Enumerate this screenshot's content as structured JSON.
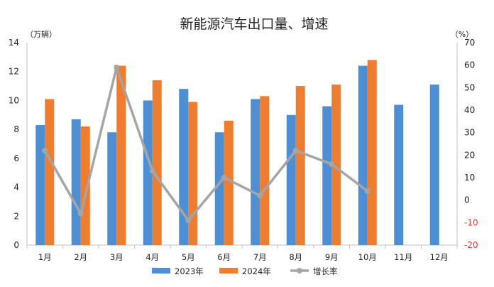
{
  "chart_data": {
    "type": "bar",
    "title": "新能源汽车出口量、增速",
    "left_axis": {
      "unit_label": "（万辆）",
      "range": [
        0,
        14
      ],
      "ticks": [
        "0",
        "2",
        "4",
        "6",
        "8",
        "10",
        "12",
        "14"
      ]
    },
    "right_axis": {
      "unit_label": "（%）",
      "range": [
        -20,
        70
      ],
      "ticks": [
        "-20",
        "-10",
        "0",
        "10",
        "20",
        "30",
        "40",
        "50",
        "60",
        "70"
      ]
    },
    "categories": [
      "1月",
      "2月",
      "3月",
      "4月",
      "5月",
      "6月",
      "7月",
      "8月",
      "9月",
      "10月",
      "11月",
      "12月"
    ],
    "series": [
      {
        "name": "2023年",
        "type": "bar",
        "axis": "left",
        "color": "#4e8fd3",
        "values": [
          8.3,
          8.7,
          7.8,
          10.0,
          10.8,
          7.8,
          10.1,
          9.0,
          9.6,
          12.4,
          9.7,
          11.1
        ]
      },
      {
        "name": "2024年",
        "type": "bar",
        "axis": "left",
        "color": "#ed7d31",
        "values": [
          10.1,
          8.2,
          12.4,
          11.4,
          9.9,
          8.6,
          10.3,
          11.0,
          11.1,
          12.8,
          null,
          null
        ]
      },
      {
        "name": "增长率",
        "type": "line",
        "axis": "right",
        "color": "#a5a5a5",
        "values": [
          22,
          -6,
          59,
          13,
          -9,
          10,
          2,
          22,
          16,
          4,
          null,
          null
        ]
      }
    ],
    "legend_position": "bottom",
    "grid": false
  }
}
